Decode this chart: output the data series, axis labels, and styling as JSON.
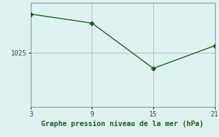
{
  "x": [
    3,
    9,
    15,
    21
  ],
  "y": [
    1033.5,
    1031.5,
    1021.5,
    1026.5
  ],
  "bg_color": "#dff2f2",
  "line_color": "#1a5c1a",
  "marker_color": "#1a5c1a",
  "grid_color": "#b8b8b8",
  "xlabel": "Graphe pression niveau de la mer (hPa)",
  "ytick_labels": [
    "1025"
  ],
  "ytick_values": [
    1025
  ],
  "xlim": [
    3,
    21
  ],
  "ylim": [
    1013,
    1036
  ],
  "xticks": [
    3,
    9,
    15,
    21
  ]
}
